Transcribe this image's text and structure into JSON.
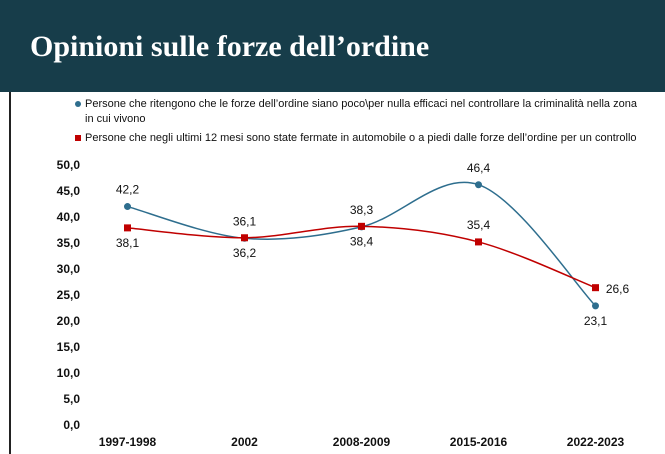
{
  "chart_data": {
    "type": "line",
    "title": "Opinioni sulle forze dell’ordine",
    "categories": [
      "1997-1998",
      "2002",
      "2008-2009",
      "2015-2016",
      "2022-2023"
    ],
    "series": [
      {
        "name": "Persone che ritengono che le forze dell’ordine siano poco\\per nulla efficaci nel controllare la criminalità nella zona in cui vivono",
        "color": "#2e6e8e",
        "marker": "circle",
        "smooth": true,
        "values": [
          42.2,
          36.1,
          38.3,
          46.4,
          23.1
        ],
        "value_labels": [
          "42,2",
          "36,1",
          "38,3",
          "46,4",
          "23,1"
        ]
      },
      {
        "name": "Persone che negli ultimi 12 mesi sono state fermate in automobile o a piedi dalle forze dell’ordine per un controllo",
        "color": "#c00000",
        "marker": "square",
        "smooth": true,
        "values": [
          38.1,
          36.2,
          38.4,
          35.4,
          26.6
        ],
        "value_labels": [
          "38,1",
          "36,2",
          "38,4",
          "35,4",
          "26,6"
        ]
      }
    ],
    "ylim": [
      0,
      50
    ],
    "yticks": [
      {
        "value": 0,
        "label": "0,0"
      },
      {
        "value": 5,
        "label": "5,0"
      },
      {
        "value": 10,
        "label": "10,0"
      },
      {
        "value": 15,
        "label": "15,0"
      },
      {
        "value": 20,
        "label": "20,0"
      },
      {
        "value": 25,
        "label": "25,0"
      },
      {
        "value": 30,
        "label": "30,0"
      },
      {
        "value": 35,
        "label": "35,0"
      },
      {
        "value": 40,
        "label": "40,0"
      },
      {
        "value": 45,
        "label": "45,0"
      },
      {
        "value": 50,
        "label": "50,0"
      }
    ],
    "grid": false,
    "legend": "top"
  }
}
